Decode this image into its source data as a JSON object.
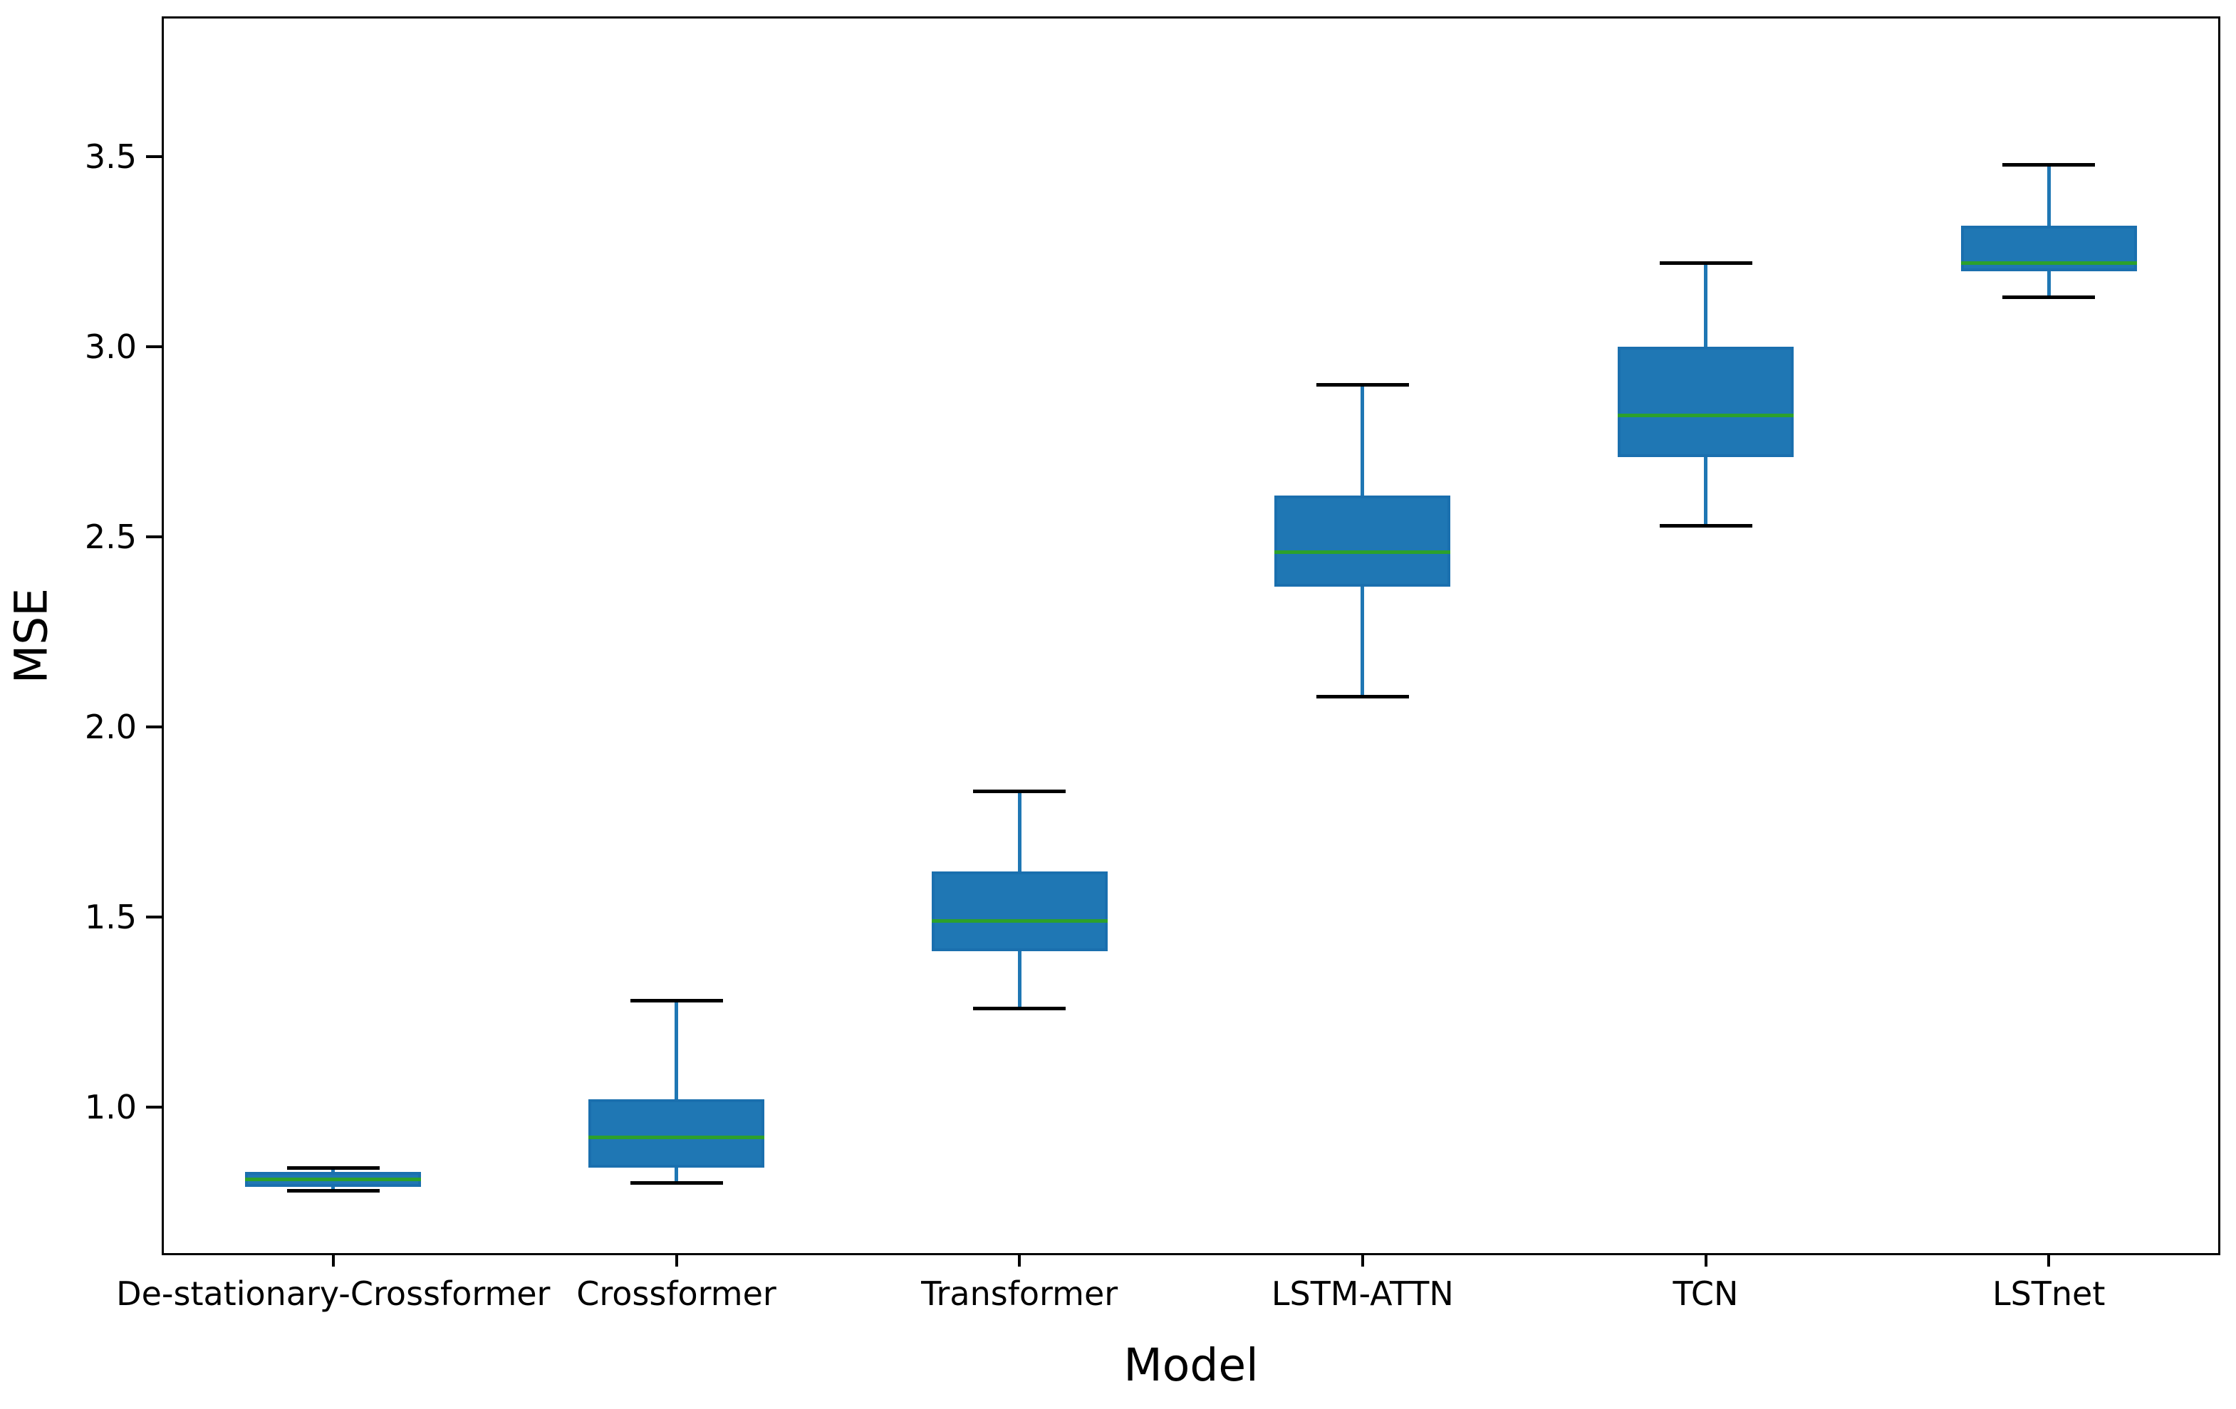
{
  "chart_data": {
    "type": "boxplot",
    "title": "",
    "xlabel": "Model",
    "ylabel": "MSE",
    "categories": [
      "De-stationary-Crossformer",
      "Crossformer",
      "Transformer",
      "LSTM-ATTN",
      "TCN",
      "LSTnet"
    ],
    "series": [
      {
        "name": "De-stationary-Crossformer",
        "whisker_low": 0.78,
        "q1": 0.79,
        "median": 0.81,
        "q3": 0.83,
        "whisker_high": 0.84
      },
      {
        "name": "Crossformer",
        "whisker_low": 0.8,
        "q1": 0.84,
        "median": 0.92,
        "q3": 1.02,
        "whisker_high": 1.28
      },
      {
        "name": "Transformer",
        "whisker_low": 1.26,
        "q1": 1.41,
        "median": 1.49,
        "q3": 1.62,
        "whisker_high": 1.83
      },
      {
        "name": "LSTM-ATTN",
        "whisker_low": 2.08,
        "q1": 2.37,
        "median": 2.46,
        "q3": 2.61,
        "whisker_high": 2.9
      },
      {
        "name": "TCN",
        "whisker_low": 2.53,
        "q1": 2.71,
        "median": 2.82,
        "q3": 3.0,
        "whisker_high": 3.22
      },
      {
        "name": "LSTnet",
        "whisker_low": 3.13,
        "q1": 3.2,
        "median": 3.22,
        "q3": 3.32,
        "whisker_high": 3.48
      }
    ],
    "y_ticks": [
      1.0,
      1.5,
      2.0,
      2.5,
      3.0,
      3.5
    ],
    "y_tick_labels": [
      "1.0",
      "1.5",
      "2.0",
      "2.5",
      "3.0",
      "3.5"
    ],
    "ylim": [
      0.61,
      3.87
    ],
    "grid": false,
    "legend": "none",
    "colors": {
      "box_fill": "#1f77b4",
      "box_edge": "#1a6fae",
      "whisker": "#1f77b4",
      "cap": "#000000",
      "median": "#2ca02c",
      "axis": "#000000",
      "background": "#ffffff"
    }
  }
}
